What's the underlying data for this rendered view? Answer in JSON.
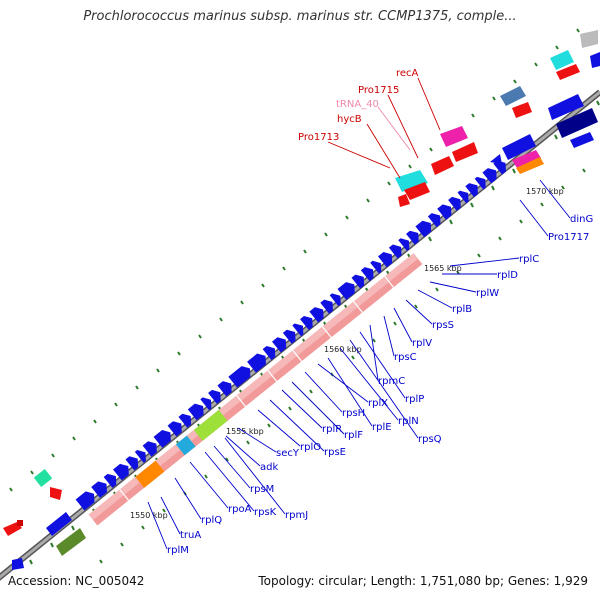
{
  "title": "Prochlorococcus marinus subsp. marinus str. CCMP1375, comple...",
  "footer": {
    "accession": "Accession: NC_005042",
    "summary": "Topology: circular; Length: 1,751,080 bp; Genes: 1,929"
  },
  "scale_labels": [
    "1550 kbp",
    "1555 kbp",
    "1560 kbp",
    "1565 kbp",
    "1570 kbp"
  ],
  "gene_labels_blue": [
    "rplM",
    "truA",
    "rplQ",
    "rpoA",
    "rpsK",
    "rpmJ",
    "rpsM",
    "adk",
    "secY",
    "rplO",
    "rpsE",
    "rplR",
    "rplF",
    "rpsH",
    "rplX",
    "rplE",
    "rplN",
    "rpsQ",
    "rplP",
    "rpmC",
    "rpsC",
    "rplV",
    "rpsS",
    "rplB",
    "rplW",
    "rplD",
    "rplC",
    "dinG",
    "Pro1717"
  ],
  "gene_labels_red": [
    "Pro1713",
    "hycB",
    "Pro1715",
    "recA"
  ],
  "gene_labels_pink": [
    "tRNA_40"
  ],
  "colors": {
    "cds": "#1010e0",
    "rrna_band": "#f29a9a",
    "backbone": "#888888",
    "red_feature": "#ee1111",
    "cyan_feature": "#22dddd",
    "magenta_feature": "#ee22aa",
    "orange_feature": "#ff8800",
    "green_feature": "#9ee03a",
    "olive_feature": "#5a8a2a",
    "navy_feature": "#000088",
    "steel_feature": "#4a7ab0",
    "red_label": "#cc0000",
    "pink_label": "#ee88aa",
    "blue_label": "#0000cc"
  }
}
